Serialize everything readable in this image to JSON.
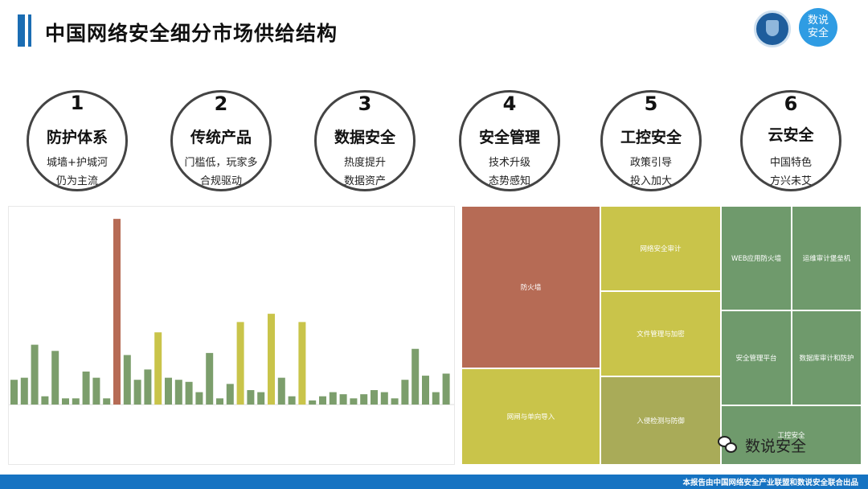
{
  "header": {
    "title": "中国网络安全细分市场供给结构",
    "logo_text_line1": "数说",
    "logo_text_line2": "安全"
  },
  "segments": [
    {
      "num": "1",
      "name": "防护体系",
      "line1": "城墙+护城河",
      "line2": "仍为主流"
    },
    {
      "num": "2",
      "name": "传统产品",
      "line1": "门槛低，玩家多",
      "line2": "合规驱动"
    },
    {
      "num": "3",
      "name": "数据安全",
      "line1": "热度提升",
      "line2": "数据资产"
    },
    {
      "num": "4",
      "name": "安全管理",
      "line1": "技术升级",
      "line2": "态势感知"
    },
    {
      "num": "5",
      "name": "工控安全",
      "line1": "政策引导",
      "line2": "投入加大"
    },
    {
      "num": "6",
      "name": "云安全",
      "line1": "中国特色",
      "line2": "方兴未艾"
    }
  ],
  "colors": {
    "green": "#7c9e6c",
    "olive": "#c9c44a",
    "red": "#b66b55",
    "blue": "#1673c2",
    "teal": "#6f9a6c",
    "yellowgreen": "#b5b24e"
  },
  "chart_data": [
    {
      "type": "bar",
      "values": [
        12,
        13,
        29,
        4,
        26,
        3,
        3,
        16,
        13,
        3,
        90,
        24,
        12,
        17,
        35,
        13,
        12,
        11,
        6,
        25,
        3,
        10,
        40,
        7,
        6,
        44,
        13,
        4,
        40,
        2,
        4,
        6,
        5,
        3,
        5,
        7,
        6,
        3,
        12,
        27,
        14,
        6,
        15
      ],
      "highlight_colors": [
        "green",
        "green",
        "green",
        "green",
        "green",
        "green",
        "green",
        "green",
        "green",
        "green",
        "red",
        "green",
        "green",
        "green",
        "olive",
        "green",
        "green",
        "green",
        "green",
        "green",
        "green",
        "green",
        "olive",
        "green",
        "green",
        "olive",
        "green",
        "green",
        "olive",
        "green",
        "green",
        "green",
        "green",
        "green",
        "green",
        "green",
        "green",
        "green",
        "green",
        "green",
        "green",
        "green",
        "green"
      ],
      "ylim": [
        0,
        92
      ]
    },
    {
      "type": "treemap",
      "tiles": [
        {
          "label": "防火墙",
          "color": "#b66b55"
        },
        {
          "label": "网闸与单向导入",
          "color": "#c9c44a"
        },
        {
          "label": "网络安全审计",
          "color": "#c9c44a"
        },
        {
          "label": "文件管理与加密",
          "color": "#c9c44a"
        },
        {
          "label": "入侵检测与防御",
          "color": "#a9ab58"
        },
        {
          "label": "WEB应用防火墙",
          "color": "#6f9a6c"
        },
        {
          "label": "运维审计堡垒机",
          "color": "#6f9a6c"
        },
        {
          "label": "安全管理平台",
          "color": "#6f9a6c"
        },
        {
          "label": "数据库审计和防护",
          "color": "#6f9a6c"
        },
        {
          "label": "工控安全",
          "color": "#6f9a6c"
        }
      ]
    }
  ],
  "watermark": {
    "text": "数说安全"
  },
  "footer": {
    "text": "本报告由中国网络安全产业联盟和数说安全联合出品"
  }
}
